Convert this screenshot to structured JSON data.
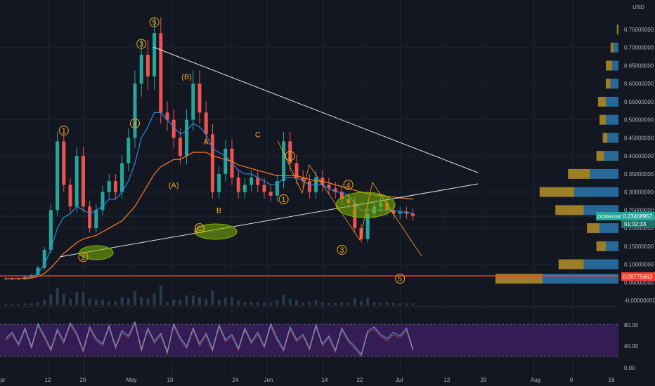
{
  "currency": "USD",
  "symbol_label": "DOGEUSD",
  "price_label": "0.23408957",
  "countdown_label": "01:02:33",
  "hline_label": "0.06775663",
  "colors": {
    "background": "#131722",
    "candle_up": "#26a69a",
    "candle_down": "#ef5350",
    "resistance_line": "#ff3b30",
    "trendline": "#e0e0e0",
    "wave_label": "#f5a623",
    "ellipse": "#7fb800",
    "rsi_band": "#3b1f5e"
  },
  "chart_data": {
    "type": "line",
    "series": [
      {
        "values": [
          0.06,
          0.06,
          0.06,
          0.065,
          0.07,
          0.09,
          0.14,
          0.25,
          0.44,
          0.32,
          0.26,
          0.4,
          0.26,
          0.2,
          0.25,
          0.3,
          0.33,
          0.3,
          0.38,
          0.45,
          0.6,
          0.68,
          0.62,
          0.74,
          0.52,
          0.5,
          0.45,
          0.4,
          0.5,
          0.6,
          0.52,
          0.46,
          0.3,
          0.35,
          0.42,
          0.34,
          0.3,
          0.32,
          0.34,
          0.32,
          0.3,
          0.29,
          0.33,
          0.44,
          0.38,
          0.34,
          0.33,
          0.3,
          0.34,
          0.32,
          0.31,
          0.3,
          0.28,
          0.27,
          0.2,
          0.17,
          0.24,
          0.26,
          0.27,
          0.25,
          0.24,
          0.245,
          0.24,
          0.234
        ]
      },
      {
        "values": [
          0.06,
          0.06,
          0.06,
          0.06,
          0.065,
          0.075,
          0.1,
          0.14,
          0.2,
          0.23,
          0.24,
          0.26,
          0.25,
          0.24,
          0.25,
          0.26,
          0.28,
          0.28,
          0.3,
          0.33,
          0.38,
          0.45,
          0.48,
          0.52,
          0.52,
          0.5,
          0.48,
          0.46,
          0.47,
          0.49,
          0.48,
          0.46,
          0.42,
          0.41,
          0.4,
          0.38,
          0.36,
          0.35,
          0.35,
          0.34,
          0.33,
          0.32,
          0.32,
          0.34,
          0.34,
          0.34,
          0.33,
          0.32,
          0.32,
          0.32,
          0.31,
          0.3,
          0.3,
          0.29,
          0.27,
          0.25,
          0.25,
          0.25,
          0.25,
          0.25,
          0.25,
          0.245,
          0.245,
          0.24
        ]
      },
      {
        "values": [
          0.06,
          0.06,
          0.06,
          0.06,
          0.062,
          0.066,
          0.075,
          0.09,
          0.11,
          0.13,
          0.145,
          0.16,
          0.17,
          0.175,
          0.18,
          0.19,
          0.2,
          0.21,
          0.22,
          0.24,
          0.26,
          0.29,
          0.32,
          0.35,
          0.37,
          0.38,
          0.39,
          0.39,
          0.4,
          0.41,
          0.41,
          0.41,
          0.4,
          0.395,
          0.39,
          0.385,
          0.375,
          0.37,
          0.365,
          0.36,
          0.355,
          0.35,
          0.345,
          0.345,
          0.345,
          0.345,
          0.34,
          0.335,
          0.33,
          0.33,
          0.325,
          0.32,
          0.315,
          0.31,
          0.305,
          0.3,
          0.295,
          0.292,
          0.29,
          0.288,
          0.286,
          0.284,
          0.282,
          0.28
        ]
      }
    ],
    "volume_profile": [
      {
        "price": 0.75,
        "up": 1,
        "down": 0
      },
      {
        "price": 0.7,
        "up": 2,
        "down": 3
      },
      {
        "price": 0.65,
        "up": 4,
        "down": 4
      },
      {
        "price": 0.6,
        "up": 3,
        "down": 5
      },
      {
        "price": 0.55,
        "up": 5,
        "down": 8
      },
      {
        "price": 0.5,
        "up": 4,
        "down": 8
      },
      {
        "price": 0.45,
        "up": 3,
        "down": 7
      },
      {
        "price": 0.4,
        "up": 5,
        "down": 9
      },
      {
        "price": 0.35,
        "up": 14,
        "down": 18
      },
      {
        "price": 0.3,
        "up": 22,
        "down": 28
      },
      {
        "price": 0.25,
        "up": 18,
        "down": 22
      },
      {
        "price": 0.2,
        "up": 8,
        "down": 12
      },
      {
        "price": 0.15,
        "up": 6,
        "down": 8
      },
      {
        "price": 0.1,
        "up": 16,
        "down": 22
      },
      {
        "price": 0.06,
        "up": 30,
        "down": 48
      }
    ],
    "wave_labels": [
      {
        "text": "1",
        "circled": true,
        "i": 9,
        "price": 0.47
      },
      {
        "text": "2",
        "circled": true,
        "i": 12,
        "price": 0.12
      },
      {
        "text": "3",
        "circled": true,
        "i": 21,
        "price": 0.71
      },
      {
        "text": "4",
        "circled": true,
        "i": 20,
        "price": 0.49
      },
      {
        "text": "5",
        "circled": true,
        "i": 23,
        "price": 0.77
      },
      {
        "text": "(A)",
        "circled": false,
        "i": 26,
        "price": 0.32
      },
      {
        "text": "(B)",
        "circled": false,
        "i": 28,
        "price": 0.62
      },
      {
        "text": "A",
        "circled": false,
        "i": 31,
        "price": 0.44
      },
      {
        "text": "B",
        "circled": false,
        "i": 33,
        "price": 0.25
      },
      {
        "text": "(C)",
        "circled": true,
        "i": 30,
        "price": 0.2
      },
      {
        "text": "C",
        "circled": false,
        "i": 39,
        "price": 0.46
      },
      {
        "text": "1",
        "circled": true,
        "i": 43,
        "price": 0.28
      },
      {
        "text": "2",
        "circled": true,
        "i": 44,
        "price": 0.4
      },
      {
        "text": "3",
        "circled": true,
        "i": 52,
        "price": 0.14
      },
      {
        "text": "4",
        "circled": true,
        "i": 53,
        "price": 0.32
      },
      {
        "text": "5",
        "circled": true,
        "i": 61,
        "price": 0.06
      }
    ],
    "rsi_values": [
      50,
      62,
      40,
      70,
      35,
      78,
      55,
      30,
      68,
      45,
      80,
      60,
      28,
      72,
      50,
      40,
      75,
      35,
      65,
      55,
      82,
      30,
      70,
      45,
      60,
      25,
      78,
      52,
      35,
      70,
      40,
      60,
      30,
      76,
      48,
      58,
      32,
      70,
      44,
      62,
      36,
      78,
      50,
      30,
      72,
      48,
      58,
      32,
      76,
      40,
      55,
      28,
      70,
      48,
      35,
      20,
      65,
      72,
      58,
      50,
      62,
      55,
      70,
      30
    ],
    "x_ticks": [
      "pr",
      "12",
      "20",
      "May",
      "10",
      "24",
      "Jun",
      "14",
      "22",
      "Jul",
      "12",
      "20",
      "Aug",
      "9",
      "16"
    ],
    "y_ticks": [
      "0.75000000",
      "0.70000000",
      "0.65000000",
      "0.60000000",
      "0.55000000",
      "0.50000000",
      "0.45000000",
      "0.40000000",
      "0.35000000",
      "0.30000000",
      "0.25000000",
      "0.20000000",
      "0.15000000",
      "0.10000000",
      "0.05000000",
      "-0.00000000"
    ],
    "rsi_ticks": [
      "80.00",
      "40.00",
      "0.00"
    ]
  }
}
